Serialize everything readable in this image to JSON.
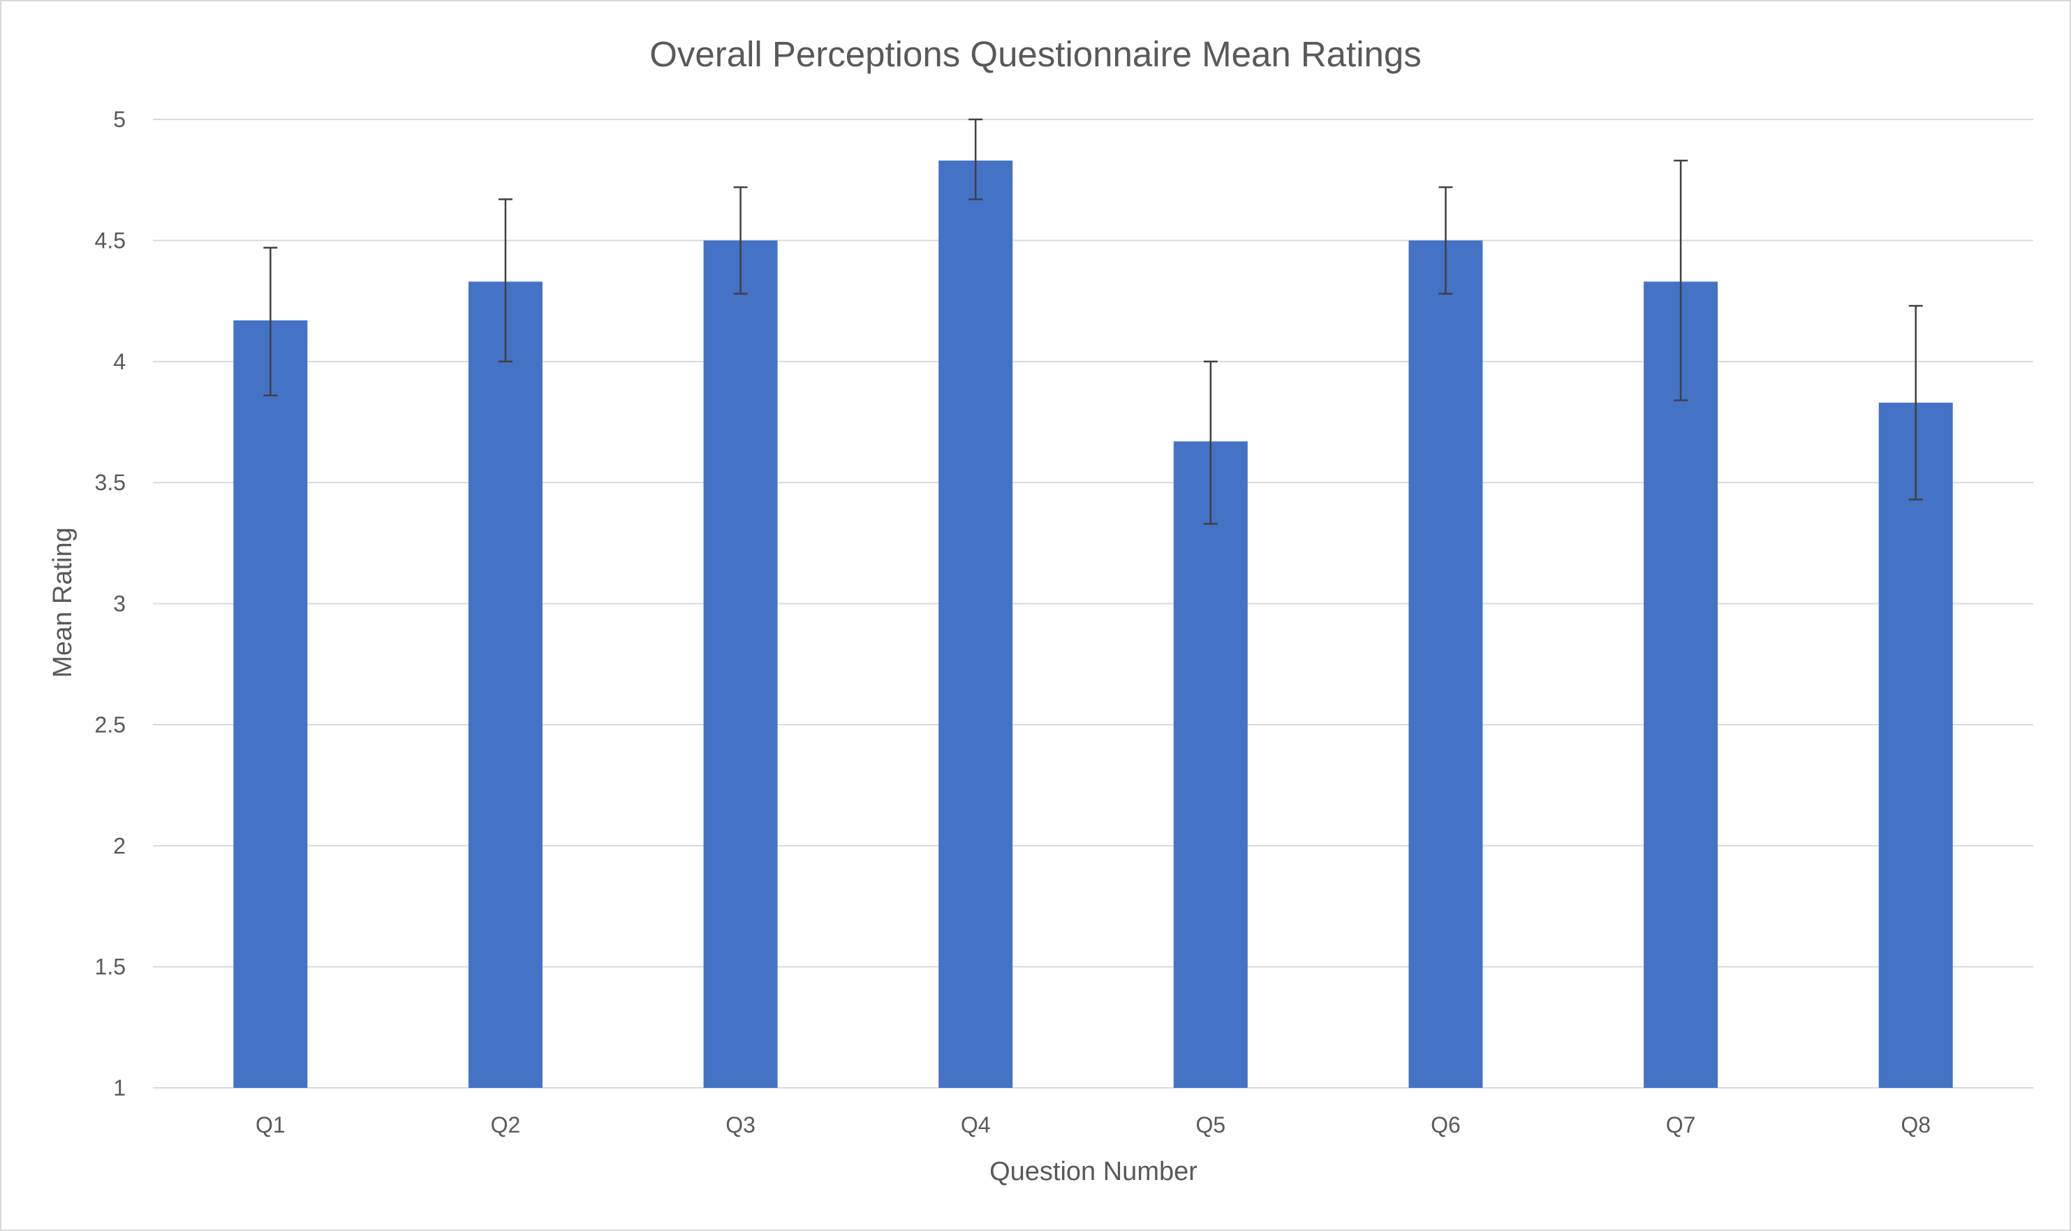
{
  "chart_data": {
    "type": "bar",
    "title": "Overall Perceptions Questionnaire Mean Ratings",
    "xlabel": "Question Number",
    "ylabel": "Mean Rating",
    "categories": [
      "Q1",
      "Q2",
      "Q3",
      "Q4",
      "Q5",
      "Q6",
      "Q7",
      "Q8"
    ],
    "series": [
      {
        "values": [
          4.17,
          4.33,
          4.5,
          4.83,
          3.67,
          4.5,
          4.33,
          3.83
        ],
        "error_low": [
          3.86,
          4.0,
          4.28,
          4.67,
          3.33,
          4.28,
          3.84,
          3.43
        ],
        "error_high": [
          4.47,
          4.67,
          4.72,
          5.0,
          4.0,
          4.72,
          4.83,
          4.23
        ]
      }
    ],
    "ylim": [
      1,
      5
    ],
    "yticks": [
      "1",
      "1.5",
      "2",
      "2.5",
      "3",
      "3.5",
      "4",
      "4.5",
      "5"
    ],
    "grid": true,
    "legend": "none",
    "colors": {
      "bar": "#4472C4",
      "grid": "#d9d9d9",
      "error_bar": "#404040",
      "text": "#595959"
    }
  }
}
